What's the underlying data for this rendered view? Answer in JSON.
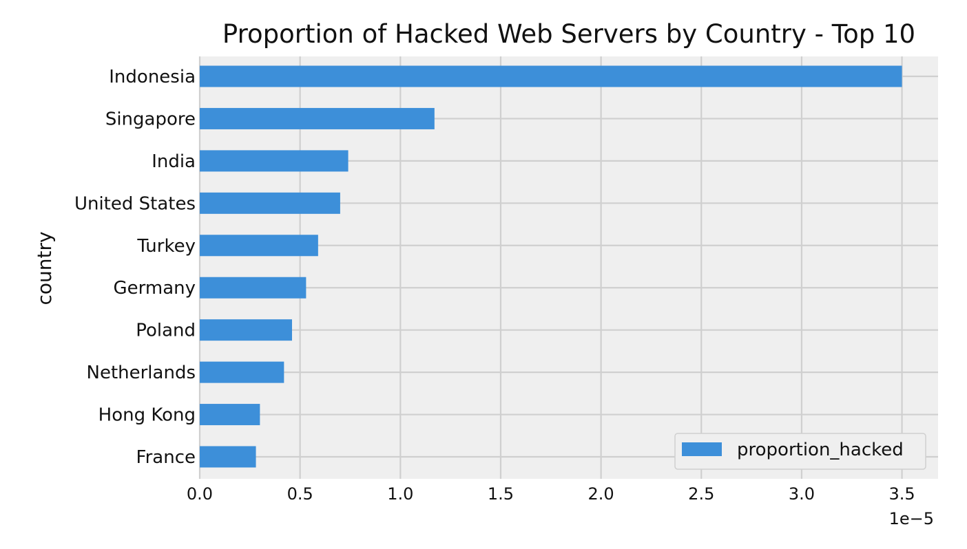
{
  "chart_data": {
    "type": "bar",
    "orientation": "horizontal",
    "title": "Proportion of Hacked Web Servers by Country - Top 10",
    "xlabel": "",
    "ylabel": "country",
    "x_offset_label": "1e−5",
    "x_scale_factor": 1e-05,
    "xlim": [
      0,
      3.68
    ],
    "xticks": [
      0.0,
      0.5,
      1.0,
      1.5,
      2.0,
      2.5,
      3.0,
      3.5
    ],
    "xtick_labels": [
      "0.0",
      "0.5",
      "1.0",
      "1.5",
      "2.0",
      "2.5",
      "3.0",
      "3.5"
    ],
    "categories": [
      "Indonesia",
      "Singapore",
      "India",
      "United States",
      "Turkey",
      "Germany",
      "Poland",
      "Netherlands",
      "Hong Kong",
      "France"
    ],
    "series": [
      {
        "name": "proportion_hacked",
        "color": "#3d8fd9",
        "values": [
          3.5,
          1.17,
          0.74,
          0.7,
          0.59,
          0.53,
          0.46,
          0.42,
          0.3,
          0.28
        ]
      }
    ],
    "grid": true,
    "legend_position": "bottom-right",
    "colors": {
      "plot_background": "#efefef",
      "grid": "#cfcfcf",
      "bar": "#3d8fd9",
      "text": "#111111"
    }
  }
}
